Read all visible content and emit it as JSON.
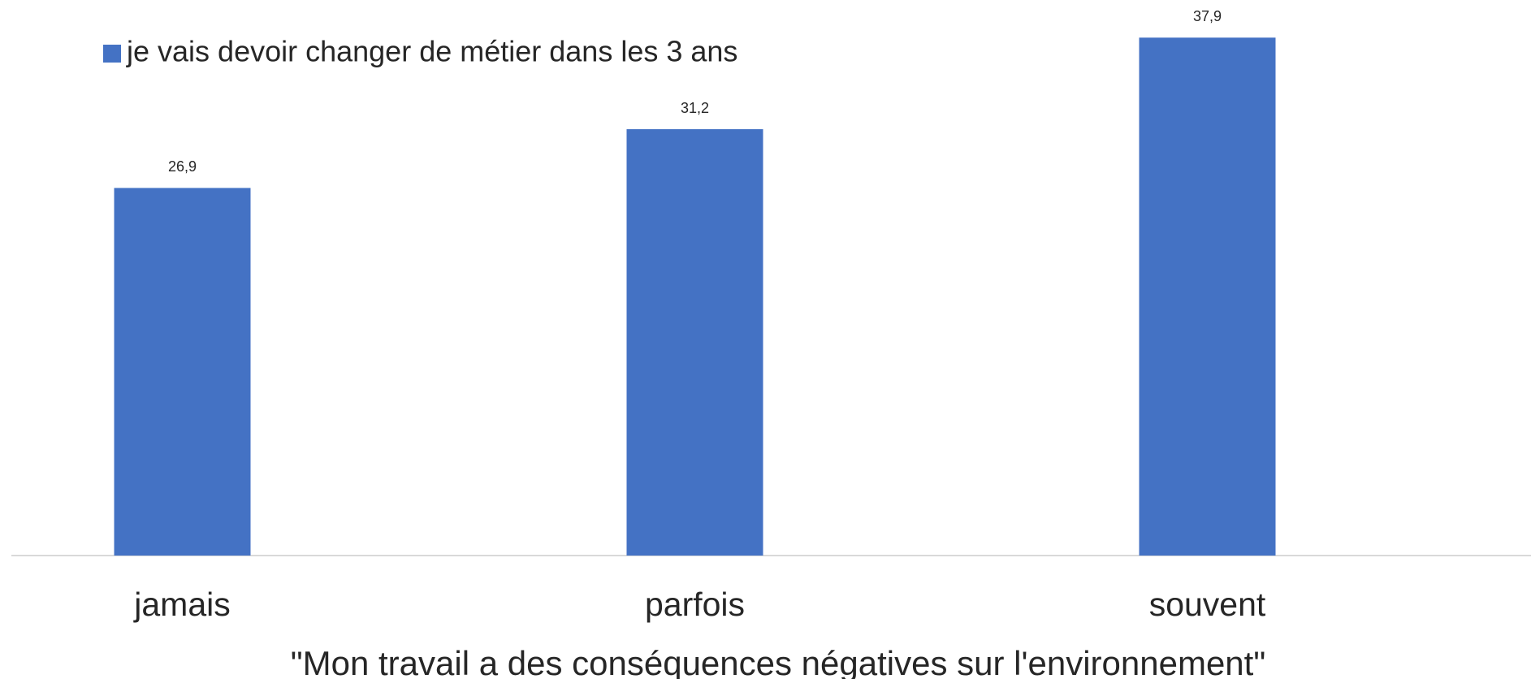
{
  "chart_data": {
    "type": "bar",
    "x_label": "\"Mon travail a des conséquences négatives sur l'environnement\"",
    "categories": [
      "jamais",
      "parfois",
      "souvent"
    ],
    "series": [
      {
        "name": "je vais devoir changer de métier dans les 3 ans",
        "color": "#4472c4",
        "values": [
          26.9,
          31.2,
          37.9
        ],
        "value_labels": [
          "26,9",
          "31,2",
          "37,9"
        ]
      }
    ],
    "ylim": [
      0,
      40
    ],
    "legend": "top-left"
  }
}
